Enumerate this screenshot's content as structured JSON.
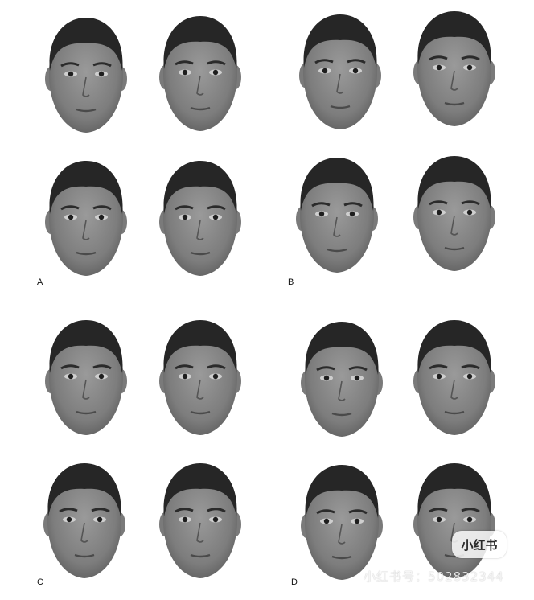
{
  "panels": {
    "a": {
      "label": "A"
    },
    "b": {
      "label": "B"
    },
    "c": {
      "label": "C"
    },
    "d": {
      "label": "D"
    }
  },
  "watermark": {
    "logo": "小红书",
    "text": "小红书号：502832344"
  },
  "colors": {
    "background": "#ffffff",
    "label": "#111111"
  }
}
